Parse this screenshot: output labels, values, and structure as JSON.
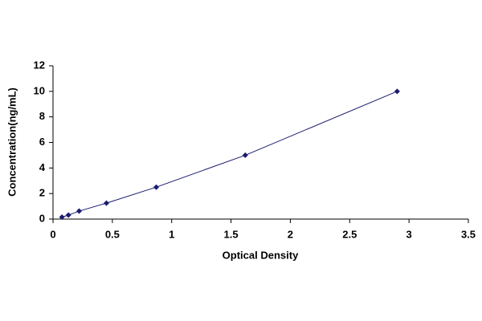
{
  "chart_data": {
    "type": "scatter",
    "xlabel": "Optical Density",
    "ylabel": "Concentration(ng/mL)",
    "x": [
      0.075,
      0.13,
      0.22,
      0.45,
      0.87,
      1.62,
      2.9
    ],
    "values": [
      0.156,
      0.312,
      0.625,
      1.25,
      2.5,
      5,
      10
    ],
    "color": "#1a1a6e",
    "line": true,
    "xlim": [
      0,
      3.5
    ],
    "xticks": [
      0,
      0.5,
      1,
      1.5,
      2,
      2.5,
      3,
      3.5
    ],
    "ylim": [
      0,
      12
    ],
    "yticks": [
      0,
      2,
      4,
      6,
      8,
      10,
      12
    ]
  }
}
